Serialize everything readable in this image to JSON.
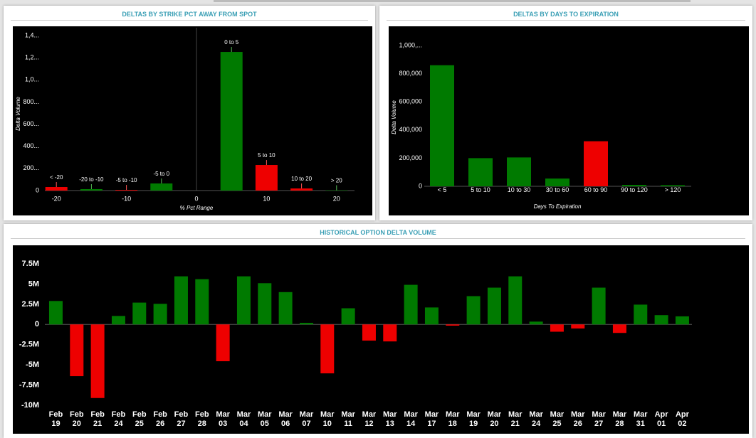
{
  "chart_data": [
    {
      "type": "bar",
      "title": "DELTAS BY STRIKE PCT AWAY FROM SPOT",
      "x_label": "% Pct Range",
      "y_label": "Delta Volume",
      "categories": [
        "< -20",
        "-20 to -10",
        "-5 to -10",
        "-5 to 0",
        "0 to 5",
        "5 to 10",
        "10 to 20",
        "> 20"
      ],
      "x": [
        -20,
        -15,
        -10,
        -5,
        5,
        10,
        15,
        20
      ],
      "values": [
        32,
        13,
        6,
        64,
        1252,
        231,
        19,
        3
      ],
      "colors": [
        "#ee0000",
        "#007a00",
        "#ee0000",
        "#007a00",
        "#007a00",
        "#ee0000",
        "#ee0000",
        "#007a00"
      ],
      "xlim": [
        -25,
        25
      ],
      "xticks": [
        -20,
        -10,
        0,
        10,
        20
      ],
      "ylim": [
        0,
        1400
      ],
      "yticks": [
        0,
        {
          "value": 200,
          "label": "200..."
        },
        {
          "value": 400,
          "label": "400..."
        },
        {
          "value": 600,
          "label": "600..."
        },
        {
          "value": 800,
          "label": "800..."
        },
        {
          "value": 1000,
          "label": "1,0..."
        },
        {
          "value": 1200,
          "label": "1,2..."
        },
        {
          "value": 1400,
          "label": "1,4..."
        }
      ],
      "grid": false
    },
    {
      "type": "bar",
      "title": "DELTAS BY DAYS TO EXPIRATION",
      "x_label": "Days To Expiration",
      "y_label": "Delta Volume",
      "categories": [
        "< 5",
        "5 to 10",
        "10 to 30",
        "30 to 60",
        "60 to 90",
        "90 to 120",
        "> 120"
      ],
      "values": [
        860000,
        200000,
        205000,
        55000,
        320000,
        10000,
        8000
      ],
      "colors": [
        "#007a00",
        "#007a00",
        "#007a00",
        "#007a00",
        "#ee0000",
        "#007a00",
        "#007a00"
      ],
      "ylim": [
        0,
        1000000
      ],
      "yticks": [
        0,
        {
          "value": 200000,
          "label": "200,000"
        },
        {
          "value": 400000,
          "label": "400,000"
        },
        {
          "value": 600000,
          "label": "600,000"
        },
        {
          "value": 800000,
          "label": "800,000"
        },
        {
          "value": 1000000,
          "label": "1,000,..."
        }
      ],
      "grid": false
    },
    {
      "type": "bar",
      "title": "HISTORICAL OPTION DELTA VOLUME",
      "categories": [
        "Feb 19",
        "Feb 20",
        "Feb 21",
        "Feb 24",
        "Feb 25",
        "Feb 26",
        "Feb 27",
        "Feb 28",
        "Mar 03",
        "Mar 04",
        "Mar 05",
        "Mar 06",
        "Mar 07",
        "Mar 10",
        "Mar 11",
        "Mar 12",
        "Mar 13",
        "Mar 14",
        "Mar 17",
        "Mar 18",
        "Mar 19",
        "Mar 20",
        "Mar 21",
        "Mar 24",
        "Mar 25",
        "Mar 26",
        "Mar 27",
        "Mar 28",
        "Mar 31",
        "Apr 01",
        "Apr 02"
      ],
      "values": [
        2900000,
        -6400000,
        -9100000,
        1050000,
        2700000,
        2550000,
        5950000,
        5600000,
        -4550000,
        5950000,
        5100000,
        4000000,
        200000,
        -6050000,
        2000000,
        -2000000,
        -2100000,
        4900000,
        2100000,
        -150000,
        3500000,
        4550000,
        5950000,
        350000,
        -900000,
        -500000,
        4550000,
        -1050000,
        2450000,
        1150000,
        1000000
      ],
      "positive_color": "#007a00",
      "negative_color": "#ee0000",
      "ylim": [
        -10000000,
        7500000
      ],
      "yticks": [
        {
          "value": 7500000,
          "label": "7.5M"
        },
        {
          "value": 5000000,
          "label": "5M"
        },
        {
          "value": 2500000,
          "label": "2.5M"
        },
        0,
        {
          "value": -2500000,
          "label": "-2.5M"
        },
        {
          "value": -5000000,
          "label": "-5M"
        },
        {
          "value": -7500000,
          "label": "-7.5M"
        },
        {
          "value": -10000000,
          "label": "-10M"
        }
      ],
      "grid": false
    }
  ]
}
